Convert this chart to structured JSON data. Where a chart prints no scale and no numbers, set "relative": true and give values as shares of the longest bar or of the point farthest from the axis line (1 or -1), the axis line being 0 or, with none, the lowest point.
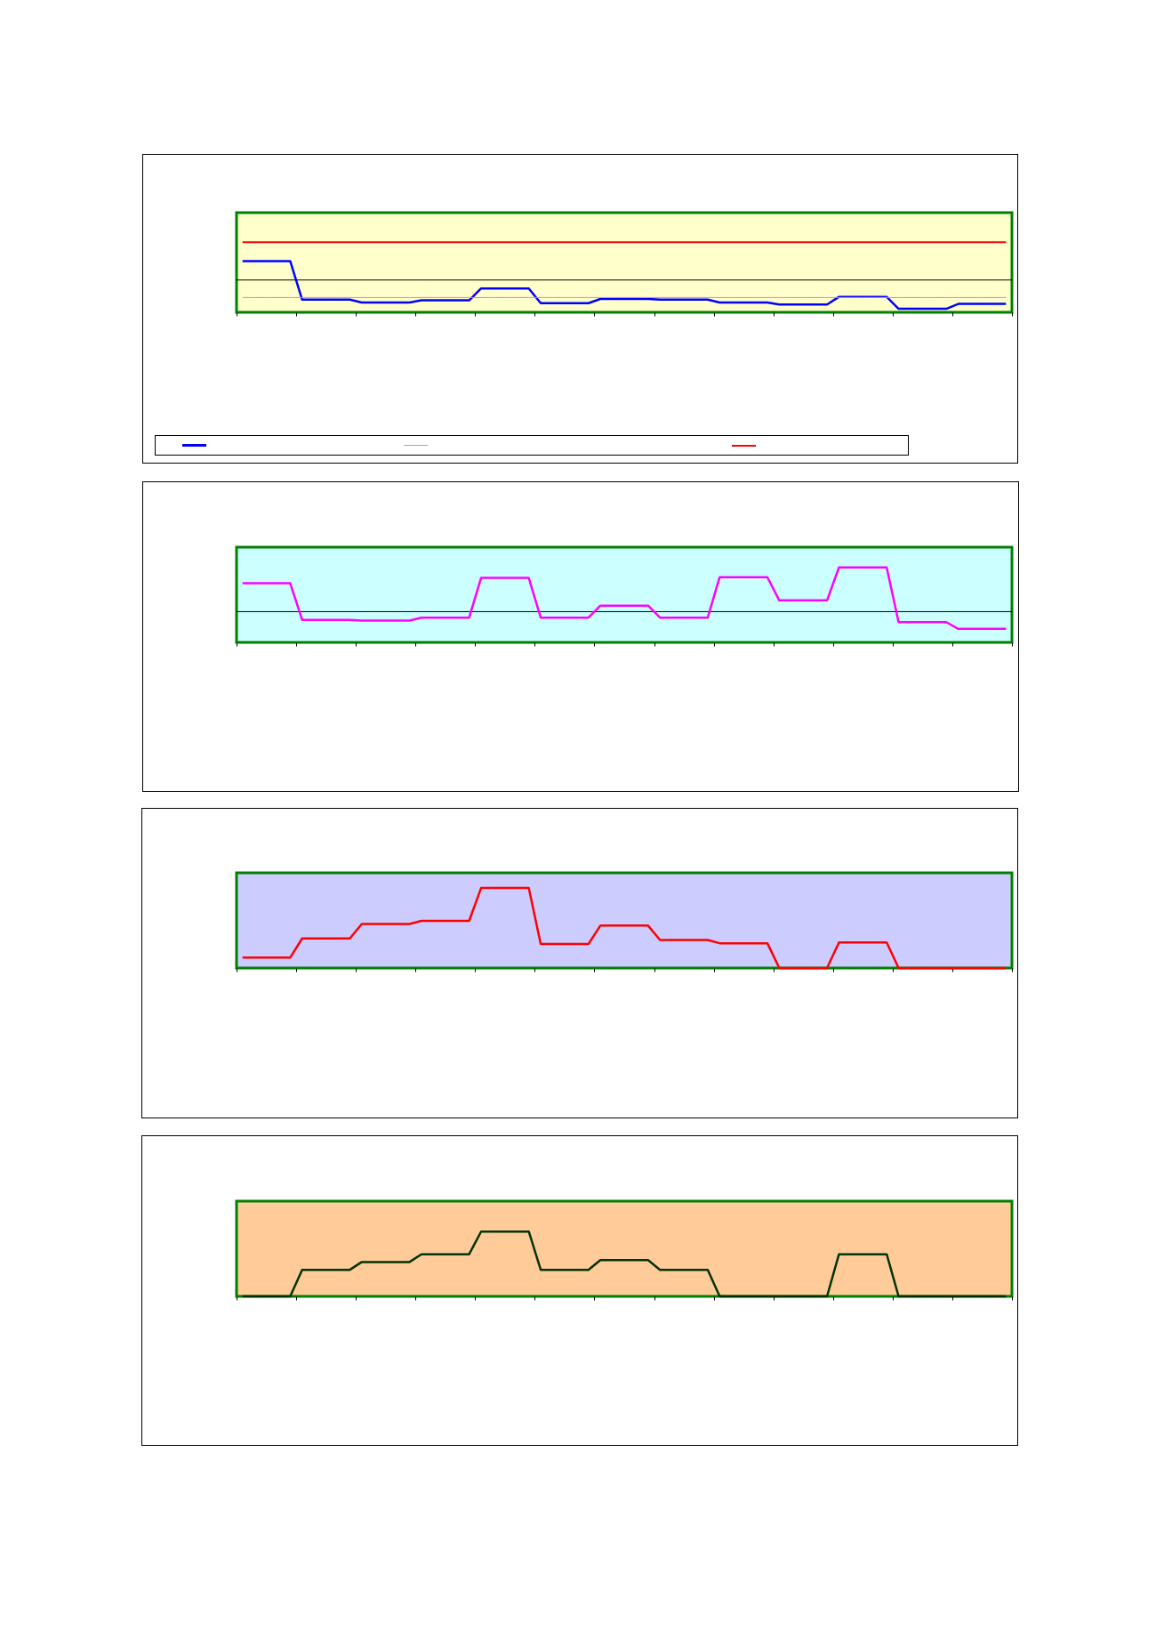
{
  "chart_data": [
    {
      "type": "line",
      "relative": true,
      "categories": [
        null,
        null,
        null,
        null,
        null,
        null,
        null,
        null,
        null,
        null,
        null,
        null,
        null,
        null,
        null,
        null,
        null,
        null,
        null,
        null,
        null,
        null,
        null,
        null,
        null,
        null,
        null,
        null,
        null,
        null,
        null,
        null,
        null,
        null,
        null,
        null,
        null,
        null,
        null,
        null,
        null,
        null,
        null,
        null,
        null,
        null,
        null,
        null,
        null,
        null,
        null,
        null,
        null,
        null,
        null,
        null,
        null,
        null,
        null,
        null,
        null,
        null,
        null,
        null,
        null
      ],
      "series": [
        {
          "color": "#0000ff",
          "values": [
            0.73,
            0.73,
            0.73,
            0.73,
            0.73,
            0.18,
            0.18,
            0.18,
            0.18,
            0.18,
            0.14,
            0.14,
            0.14,
            0.14,
            0.14,
            0.17,
            0.17,
            0.17,
            0.17,
            0.17,
            0.34,
            0.34,
            0.34,
            0.34,
            0.34,
            0.13,
            0.13,
            0.13,
            0.13,
            0.13,
            0.19,
            0.19,
            0.19,
            0.19,
            0.19,
            0.18,
            0.18,
            0.18,
            0.18,
            0.18,
            0.14,
            0.14,
            0.14,
            0.14,
            0.14,
            0.11,
            0.11,
            0.11,
            0.11,
            0.11,
            0.22,
            0.22,
            0.22,
            0.22,
            0.22,
            0.05,
            0.05,
            0.05,
            0.05,
            0.05,
            0.12,
            0.12,
            0.12,
            0.12,
            0.12
          ]
        },
        {
          "color": "#ff66ff",
          "values": [
            0.21,
            0.21,
            0.21,
            0.21,
            0.21,
            0.21,
            0.21,
            0.21,
            0.21,
            0.21,
            0.21,
            0.21,
            0.21,
            0.21,
            0.21,
            0.21,
            0.21,
            0.21,
            0.21,
            0.21,
            0.21,
            0.21,
            0.21,
            0.21,
            0.21,
            0.21,
            0.21,
            0.21,
            0.21,
            0.21,
            0.21,
            0.21,
            0.21,
            0.21,
            0.21,
            0.21,
            0.21,
            0.21,
            0.21,
            0.21,
            0.21,
            0.21,
            0.21,
            0.21,
            0.21,
            0.21,
            0.21,
            0.21,
            0.21,
            0.21,
            0.21,
            0.21,
            0.21,
            0.21,
            0.21,
            0.21,
            0.21,
            0.21,
            0.21,
            0.21,
            0.21,
            0.21,
            0.21,
            0.21,
            0.21
          ]
        },
        {
          "color": "#ff0000",
          "values": [
            1,
            1,
            1,
            1,
            1,
            1,
            1,
            1,
            1,
            1,
            1,
            1,
            1,
            1,
            1,
            1,
            1,
            1,
            1,
            1,
            1,
            1,
            1,
            1,
            1,
            1,
            1,
            1,
            1,
            1,
            1,
            1,
            1,
            1,
            1,
            1,
            1,
            1,
            1,
            1,
            1,
            1,
            1,
            1,
            1,
            1,
            1,
            1,
            1,
            1,
            1,
            1,
            1,
            1,
            1,
            1,
            1,
            1,
            1,
            1,
            1,
            1,
            1,
            1,
            1
          ]
        }
      ],
      "ref_lines": [
        {
          "axis": "y",
          "value": 0.46,
          "color": "#000000"
        }
      ]
    },
    {
      "type": "line",
      "relative": true,
      "categories": [
        null,
        null,
        null,
        null,
        null,
        null,
        null,
        null,
        null,
        null,
        null,
        null,
        null,
        null,
        null,
        null,
        null,
        null,
        null,
        null,
        null,
        null,
        null,
        null,
        null,
        null,
        null,
        null,
        null,
        null,
        null,
        null,
        null,
        null,
        null,
        null,
        null,
        null,
        null,
        null,
        null,
        null,
        null,
        null,
        null,
        null,
        null,
        null,
        null,
        null,
        null,
        null,
        null,
        null,
        null,
        null,
        null,
        null,
        null,
        null,
        null,
        null,
        null,
        null,
        null
      ],
      "series": [
        {
          "color": "#ff00ff",
          "values": [
            0.79,
            0.79,
            0.79,
            0.79,
            0.79,
            0.3,
            0.3,
            0.3,
            0.3,
            0.3,
            0.29,
            0.29,
            0.29,
            0.29,
            0.29,
            0.33,
            0.33,
            0.33,
            0.33,
            0.33,
            0.86,
            0.86,
            0.86,
            0.86,
            0.86,
            0.33,
            0.33,
            0.33,
            0.33,
            0.33,
            0.49,
            0.49,
            0.49,
            0.49,
            0.49,
            0.33,
            0.33,
            0.33,
            0.33,
            0.33,
            0.87,
            0.87,
            0.87,
            0.87,
            0.87,
            0.56,
            0.56,
            0.56,
            0.56,
            0.56,
            1,
            1,
            1,
            1,
            1,
            0.27,
            0.27,
            0.27,
            0.27,
            0.27,
            0.18,
            0.18,
            0.18,
            0.18,
            0.18
          ]
        }
      ],
      "ref_lines": [
        {
          "axis": "y",
          "value": 0.41,
          "color": "#000000"
        }
      ]
    },
    {
      "type": "line",
      "relative": true,
      "categories": [
        null,
        null,
        null,
        null,
        null,
        null,
        null,
        null,
        null,
        null,
        null,
        null,
        null,
        null,
        null,
        null,
        null,
        null,
        null,
        null,
        null,
        null,
        null,
        null,
        null,
        null,
        null,
        null,
        null,
        null,
        null,
        null,
        null,
        null,
        null,
        null,
        null,
        null,
        null,
        null,
        null,
        null,
        null,
        null,
        null,
        null,
        null,
        null,
        null,
        null,
        null,
        null,
        null,
        null,
        null,
        null,
        null,
        null,
        null,
        null,
        null,
        null,
        null,
        null,
        null
      ],
      "series": [
        {
          "color": "#ff0000",
          "values": [
            0.13,
            0.13,
            0.13,
            0.13,
            0.13,
            0.37,
            0.37,
            0.37,
            0.37,
            0.37,
            0.55,
            0.55,
            0.55,
            0.55,
            0.55,
            0.59,
            0.59,
            0.59,
            0.59,
            0.59,
            1,
            1,
            1,
            1,
            1,
            0.3,
            0.3,
            0.3,
            0.3,
            0.3,
            0.53,
            0.53,
            0.53,
            0.53,
            0.53,
            0.35,
            0.35,
            0.35,
            0.35,
            0.35,
            0.31,
            0.31,
            0.31,
            0.31,
            0.31,
            0,
            0,
            0,
            0,
            0,
            0.32,
            0.32,
            0.32,
            0.32,
            0.32,
            0,
            0,
            0,
            0,
            0,
            0,
            0,
            0,
            0,
            0
          ]
        }
      ]
    },
    {
      "type": "line",
      "relative": true,
      "categories": [
        null,
        null,
        null,
        null,
        null,
        null,
        null,
        null,
        null,
        null,
        null,
        null,
        null,
        null,
        null,
        null,
        null,
        null,
        null,
        null,
        null,
        null,
        null,
        null,
        null,
        null,
        null,
        null,
        null,
        null,
        null,
        null,
        null,
        null,
        null,
        null,
        null,
        null,
        null,
        null,
        null,
        null,
        null,
        null,
        null,
        null,
        null,
        null,
        null,
        null,
        null,
        null,
        null,
        null,
        null,
        null,
        null,
        null,
        null,
        null,
        null,
        null,
        null,
        null,
        null
      ],
      "series": [
        {
          "color": "#003300",
          "values": [
            0,
            0,
            0,
            0,
            0,
            0.41,
            0.41,
            0.41,
            0.41,
            0.41,
            0.53,
            0.53,
            0.53,
            0.53,
            0.53,
            0.65,
            0.65,
            0.65,
            0.65,
            0.65,
            1,
            1,
            1,
            1,
            1,
            0.41,
            0.41,
            0.41,
            0.41,
            0.41,
            0.56,
            0.56,
            0.56,
            0.56,
            0.56,
            0.41,
            0.41,
            0.41,
            0.41,
            0.41,
            0,
            0,
            0,
            0,
            0,
            0,
            0,
            0,
            0,
            0,
            0.65,
            0.65,
            0.65,
            0.65,
            0.65,
            0,
            0,
            0,
            0,
            0,
            0,
            0,
            0,
            0,
            0
          ]
        }
      ]
    }
  ]
}
